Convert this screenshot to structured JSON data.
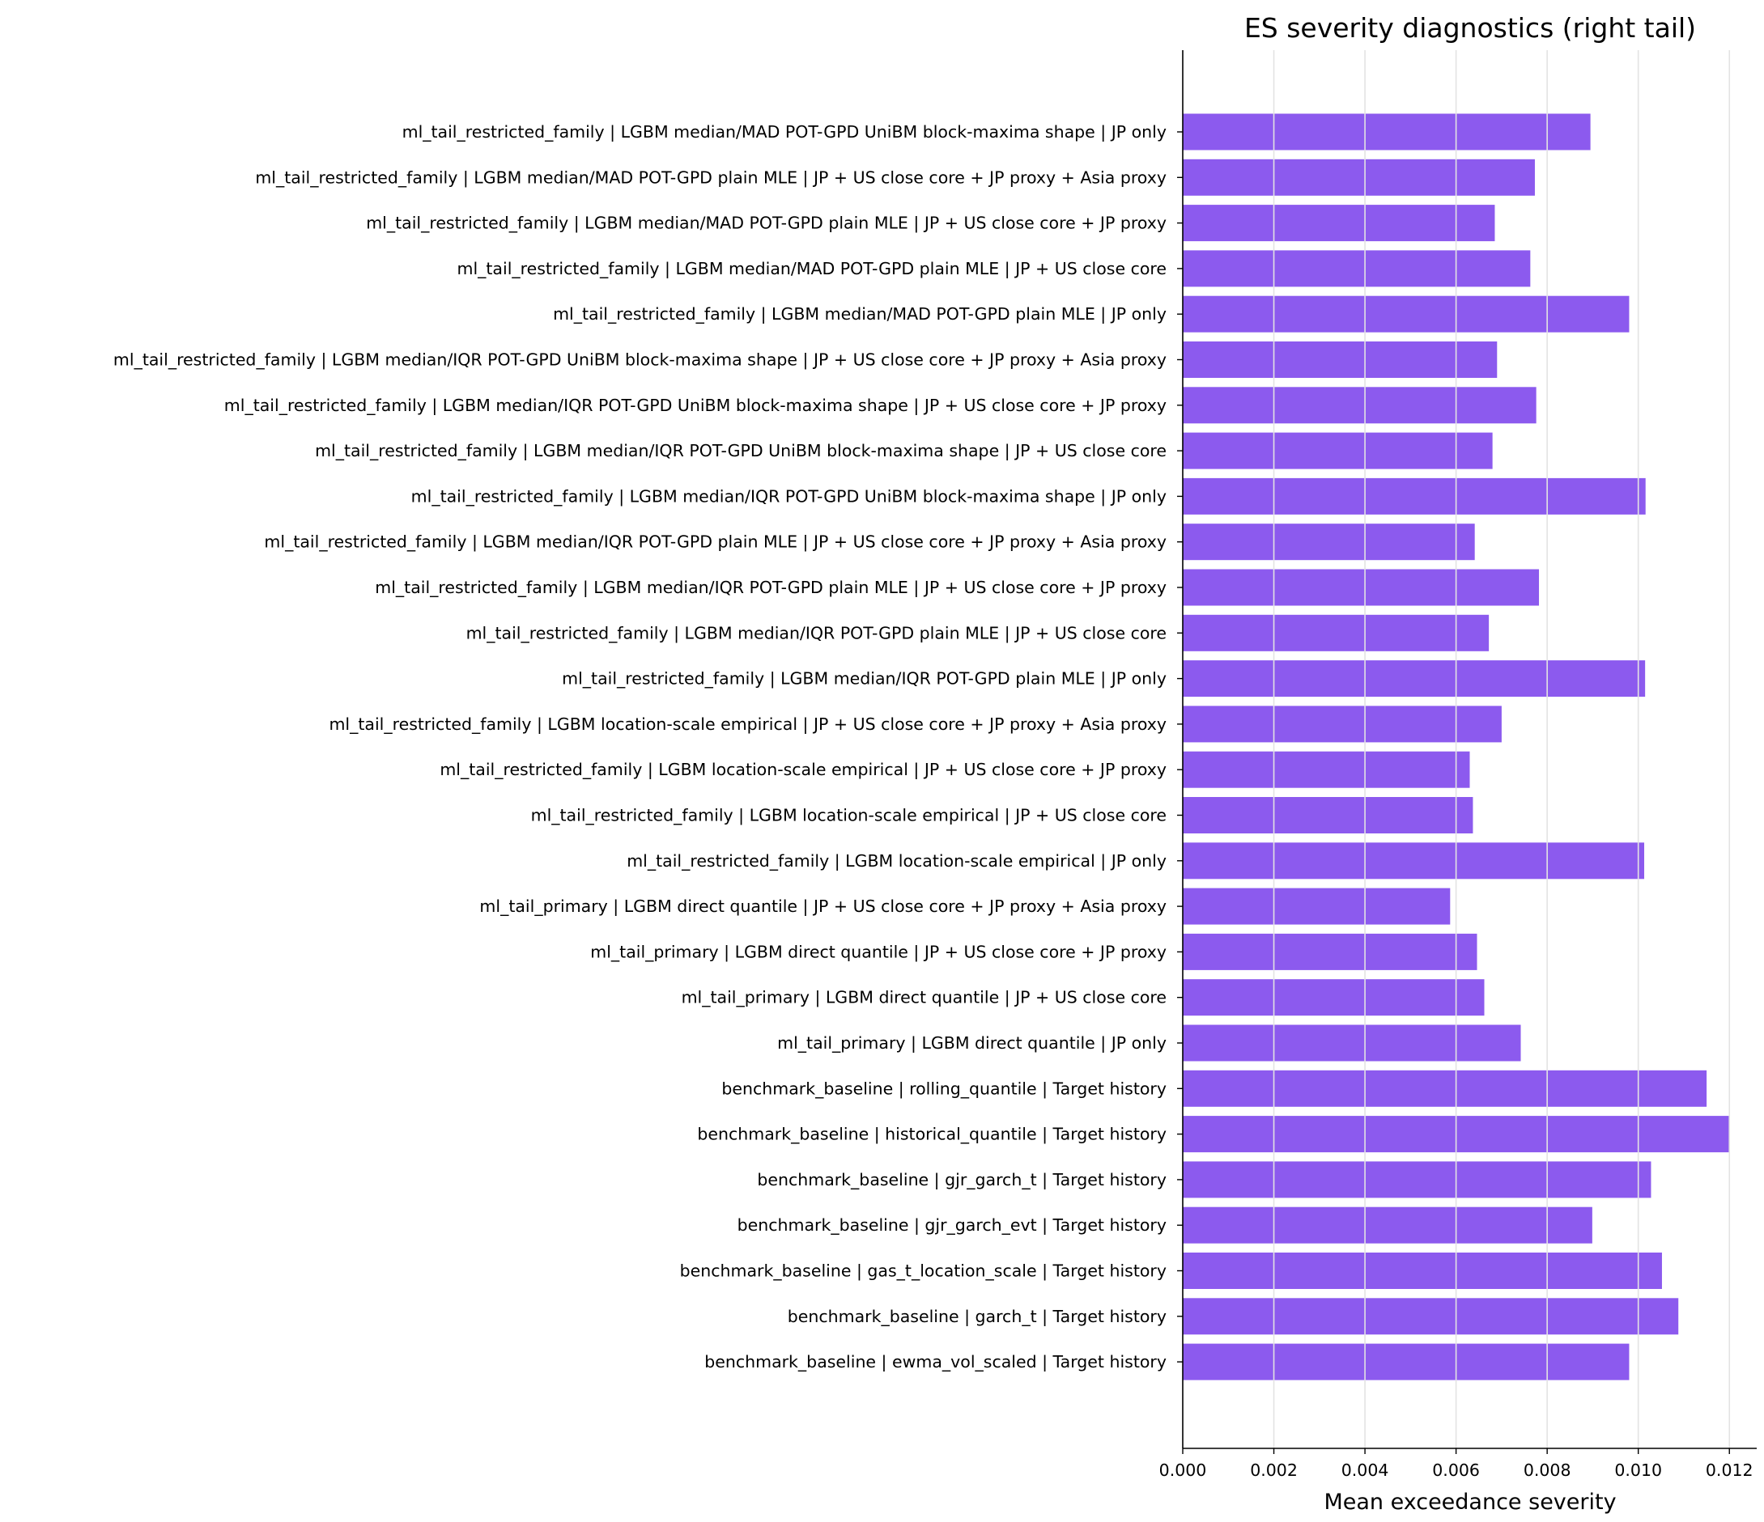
{
  "chart_data": {
    "type": "bar",
    "orientation": "horizontal",
    "title": "ES severity diagnostics (right tail)",
    "xlabel": "Mean exceedance severity",
    "ylabel": "",
    "xlim": [
      0,
      0.0126
    ],
    "xticks": [
      "0.000",
      "0.002",
      "0.004",
      "0.006",
      "0.008",
      "0.010",
      "0.012"
    ],
    "xtick_values": [
      0,
      0.002,
      0.004,
      0.006,
      0.008,
      0.01,
      0.012
    ],
    "grid": "vertical",
    "bar_color": "#8c5aee",
    "categories": [
      "ml_tail_restricted_family | LGBM median/MAD POT-GPD UniBM block-maxima shape | JP only",
      "ml_tail_restricted_family | LGBM median/MAD POT-GPD plain MLE | JP + US close core + JP proxy + Asia proxy",
      "ml_tail_restricted_family | LGBM median/MAD POT-GPD plain MLE | JP + US close core + JP proxy",
      "ml_tail_restricted_family | LGBM median/MAD POT-GPD plain MLE | JP + US close core",
      "ml_tail_restricted_family | LGBM median/MAD POT-GPD plain MLE | JP only",
      "ml_tail_restricted_family | LGBM median/IQR POT-GPD UniBM block-maxima shape | JP + US close core + JP proxy + Asia proxy",
      "ml_tail_restricted_family | LGBM median/IQR POT-GPD UniBM block-maxima shape | JP + US close core + JP proxy",
      "ml_tail_restricted_family | LGBM median/IQR POT-GPD UniBM block-maxima shape | JP + US close core",
      "ml_tail_restricted_family | LGBM median/IQR POT-GPD UniBM block-maxima shape | JP only",
      "ml_tail_restricted_family | LGBM median/IQR POT-GPD plain MLE | JP + US close core + JP proxy + Asia proxy",
      "ml_tail_restricted_family | LGBM median/IQR POT-GPD plain MLE | JP + US close core + JP proxy",
      "ml_tail_restricted_family | LGBM median/IQR POT-GPD plain MLE | JP + US close core",
      "ml_tail_restricted_family | LGBM median/IQR POT-GPD plain MLE | JP only",
      "ml_tail_restricted_family | LGBM location-scale empirical | JP + US close core + JP proxy + Asia proxy",
      "ml_tail_restricted_family | LGBM location-scale empirical | JP + US close core + JP proxy",
      "ml_tail_restricted_family | LGBM location-scale empirical | JP + US close core",
      "ml_tail_restricted_family | LGBM location-scale empirical | JP only",
      "ml_tail_primary | LGBM direct quantile | JP + US close core + JP proxy + Asia proxy",
      "ml_tail_primary | LGBM direct quantile | JP + US close core + JP proxy",
      "ml_tail_primary | LGBM direct quantile | JP + US close core",
      "ml_tail_primary | LGBM direct quantile | JP only",
      "benchmark_baseline | rolling_quantile | Target history",
      "benchmark_baseline | historical_quantile | Target history",
      "benchmark_baseline | gjr_garch_t | Target history",
      "benchmark_baseline | gjr_garch_evt | Target history",
      "benchmark_baseline | gas_t_location_scale | Target history",
      "benchmark_baseline | garch_t | Target history",
      "benchmark_baseline | ewma_vol_scaled | Target history"
    ],
    "values": [
      0.00895,
      0.00773,
      0.00685,
      0.00763,
      0.0098,
      0.0069,
      0.00776,
      0.0068,
      0.01016,
      0.00641,
      0.00782,
      0.00672,
      0.01015,
      0.007,
      0.0063,
      0.00637,
      0.01013,
      0.00587,
      0.00646,
      0.00662,
      0.00742,
      0.0115,
      0.012,
      0.01028,
      0.00899,
      0.01052,
      0.01088,
      0.0098
    ]
  }
}
